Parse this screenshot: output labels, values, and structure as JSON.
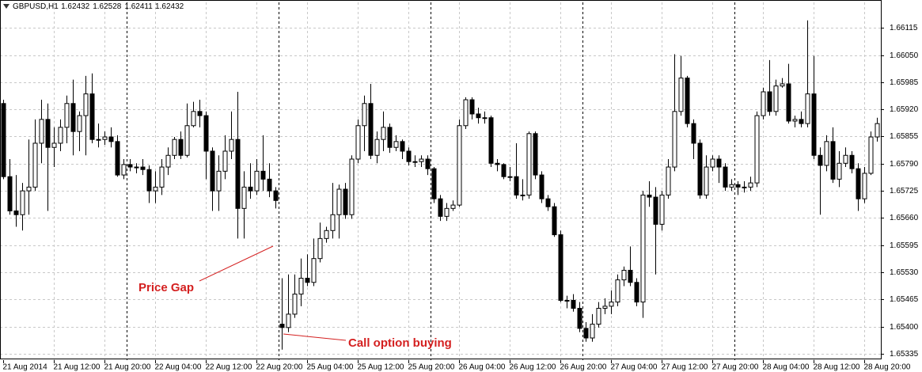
{
  "chart_data": {
    "type": "candlestick",
    "symbol": "GBPUSD,H1",
    "header_prices": [
      1.62432,
      1.62528,
      1.62411,
      1.62432
    ],
    "annotations": [
      "Price Gap",
      "Call option buying"
    ],
    "categories": [
      "21 Aug 2014",
      null,
      null,
      null,
      null,
      null,
      null,
      null,
      "21 Aug 12:00",
      null,
      null,
      null,
      null,
      null,
      null,
      null,
      "21 Aug 20:00",
      null,
      null,
      null,
      null,
      null,
      null,
      null,
      "22 Aug 04:00",
      null,
      null,
      null,
      null,
      null,
      null,
      null,
      "22 Aug 12:00",
      null,
      null,
      null,
      null,
      null,
      null,
      null,
      "22 Aug 20:00",
      null,
      null,
      null,
      null,
      null,
      null,
      null,
      "25 Aug 04:00",
      null,
      null,
      null,
      null,
      null,
      null,
      null,
      "25 Aug 12:00",
      null,
      null,
      null,
      null,
      null,
      null,
      null,
      "25 Aug 20:00",
      null,
      null,
      null,
      null,
      null,
      null,
      null,
      "26 Aug 04:00",
      null,
      null,
      null,
      null,
      null,
      null,
      null,
      "26 Aug 12:00",
      null,
      null,
      null,
      null,
      null,
      null,
      null,
      "26 Aug 20:00",
      null,
      null,
      null,
      null,
      null,
      null,
      null,
      "27 Aug 04:00",
      null,
      null,
      null,
      null,
      null,
      null,
      null,
      "27 Aug 12:00",
      null,
      null,
      null,
      null,
      null,
      null,
      null,
      "27 Aug 20:00",
      null,
      null,
      null,
      null,
      null,
      null,
      null,
      "28 Aug 04:00",
      null,
      null,
      null,
      null,
      null,
      null,
      null,
      "28 Aug 12:00",
      null,
      null,
      null,
      null,
      null,
      null,
      null,
      "28 Aug 20:00",
      null,
      null
    ],
    "open": [
      1.65934,
      1.65759,
      1.65677,
      1.65668,
      1.65725,
      1.65734,
      1.65839,
      1.65896,
      1.65829,
      1.65839,
      1.65877,
      1.65934,
      1.65867,
      1.65905,
      1.65957,
      1.65848,
      1.65848,
      1.65854,
      1.65843,
      1.65763,
      1.65788,
      1.65782,
      1.65782,
      1.65776,
      1.65725,
      1.65734,
      1.65782,
      1.6581,
      1.65848,
      1.6581,
      1.65881,
      1.65915,
      1.65905,
      1.6582,
      1.65725,
      1.65772,
      1.6582,
      1.65848,
      1.65683,
      1.65734,
      1.65725,
      1.65772,
      1.65753,
      1.65725,
      1.65406,
      1.65398,
      1.6543,
      1.65478,
      1.65516,
      1.65506,
      1.65563,
      1.65611,
      1.6563,
      1.65668,
      1.65729,
      1.65668,
      1.65801,
      1.65881,
      1.65934,
      1.6581,
      1.65848,
      1.65877,
      1.65829,
      1.65843,
      1.6582,
      1.65795,
      1.65795,
      1.65801,
      1.65778,
      1.65706,
      1.65664,
      1.65683,
      1.65691,
      1.65881,
      1.65943,
      1.65909,
      1.659,
      1.659,
      1.65791,
      1.65788,
      1.65759,
      1.65759,
      1.65715,
      1.65715,
      1.65862,
      1.65763,
      1.65706,
      1.65687,
      1.6562,
      1.65463,
      1.65463,
      1.65444,
      1.65396,
      1.65373,
      1.65406,
      1.65444,
      1.65449,
      1.65459,
      1.65512,
      1.65535,
      1.65506,
      1.65459,
      1.65715,
      1.6571,
      1.65645,
      1.65715,
      1.65782,
      1.65915,
      1.65995,
      1.65886,
      1.65839,
      1.65715,
      1.65782,
      1.65801,
      1.65782,
      1.65734,
      1.6574,
      1.65734,
      1.65734,
      1.65744,
      1.65905,
      1.65962,
      1.65915,
      1.65976,
      1.65981,
      1.65892,
      1.65896,
      1.65886,
      1.65957,
      1.6581,
      1.65786,
      1.65843,
      1.65753,
      1.65791,
      1.6581,
      1.65778,
      1.65706,
      1.65767,
      1.65854
    ],
    "high": [
      1.65943,
      1.65801,
      1.65763,
      1.65744,
      1.65848,
      1.65896,
      1.65943,
      1.65934,
      1.65877,
      1.65896,
      1.65953,
      1.65991,
      1.65915,
      1.66,
      1.66006,
      1.65886,
      1.65867,
      1.65877,
      1.65858,
      1.65801,
      1.65801,
      1.65791,
      1.65801,
      1.65786,
      1.65772,
      1.65801,
      1.65829,
      1.65854,
      1.65867,
      1.65934,
      1.65938,
      1.65943,
      1.65915,
      1.65829,
      1.6581,
      1.65858,
      1.65915,
      1.65962,
      1.65772,
      1.65791,
      1.65801,
      1.65858,
      1.65791,
      1.65734,
      1.65516,
      1.65525,
      1.65525,
      1.65563,
      1.65573,
      1.65611,
      1.65649,
      1.65639,
      1.65744,
      1.6574,
      1.65744,
      1.6581,
      1.65896,
      1.65953,
      1.65981,
      1.65867,
      1.65915,
      1.65886,
      1.65858,
      1.65848,
      1.65829,
      1.6581,
      1.6581,
      1.6581,
      1.65782,
      1.65715,
      1.65696,
      1.65702,
      1.65896,
      1.65949,
      1.65949,
      1.65924,
      1.65915,
      1.65905,
      1.65801,
      1.65791,
      1.65782,
      1.65839,
      1.65753,
      1.65867,
      1.65867,
      1.65772,
      1.65715,
      1.65696,
      1.6563,
      1.65474,
      1.65478,
      1.65459,
      1.65411,
      1.6543,
      1.65459,
      1.65468,
      1.65487,
      1.65525,
      1.65544,
      1.65592,
      1.65516,
      1.65725,
      1.65748,
      1.65734,
      1.65725,
      1.65801,
      1.66052,
      1.66048,
      1.66,
      1.65896,
      1.65848,
      1.6581,
      1.6581,
      1.6581,
      1.65791,
      1.65753,
      1.65748,
      1.65748,
      1.65759,
      1.65915,
      1.65972,
      1.66038,
      1.65991,
      1.65995,
      1.66029,
      1.65905,
      1.65915,
      1.66133,
      1.66048,
      1.65829,
      1.65858,
      1.65877,
      1.6582,
      1.65829,
      1.6582,
      1.65791,
      1.65782,
      1.65867,
      1.659
    ],
    "low": [
      1.65753,
      1.65668,
      1.65639,
      1.6563,
      1.65668,
      1.65725,
      1.65791,
      1.65677,
      1.65782,
      1.6582,
      1.65839,
      1.6581,
      1.6582,
      1.6581,
      1.65839,
      1.65829,
      1.65835,
      1.65829,
      1.65759,
      1.65753,
      1.65772,
      1.65767,
      1.65763,
      1.65696,
      1.65696,
      1.65715,
      1.65763,
      1.65801,
      1.65801,
      1.65805,
      1.65877,
      1.65877,
      1.65753,
      1.65677,
      1.65677,
      1.65753,
      1.65801,
      1.65611,
      1.65611,
      1.65706,
      1.65715,
      1.65725,
      1.6571,
      1.65683,
      1.65345,
      1.65387,
      1.65421,
      1.65449,
      1.65497,
      1.65497,
      1.65554,
      1.65601,
      1.65611,
      1.65611,
      1.65658,
      1.65658,
      1.65791,
      1.6582,
      1.65801,
      1.65791,
      1.6582,
      1.65816,
      1.6582,
      1.65801,
      1.65786,
      1.65782,
      1.65782,
      1.65763,
      1.65696,
      1.65653,
      1.65653,
      1.65677,
      1.65687,
      1.65873,
      1.65896,
      1.65886,
      1.65886,
      1.65782,
      1.65772,
      1.65753,
      1.65748,
      1.65706,
      1.65702,
      1.65706,
      1.65753,
      1.65696,
      1.65677,
      1.65615,
      1.65459,
      1.65444,
      1.65436,
      1.65387,
      1.65364,
      1.65364,
      1.65398,
      1.6543,
      1.6543,
      1.65449,
      1.65497,
      1.65497,
      1.65449,
      1.65421,
      1.65687,
      1.65525,
      1.6563,
      1.65706,
      1.65772,
      1.65905,
      1.65877,
      1.65801,
      1.65706,
      1.65706,
      1.65772,
      1.65744,
      1.65725,
      1.65725,
      1.65715,
      1.65721,
      1.65725,
      1.65734,
      1.65896,
      1.65905,
      1.65905,
      1.65972,
      1.65886,
      1.65877,
      1.65877,
      1.65877,
      1.65801,
      1.65668,
      1.65772,
      1.65744,
      1.65734,
      1.65782,
      1.65767,
      1.65677,
      1.65696,
      1.65763,
      1.65843
    ],
    "close": [
      1.65759,
      1.65677,
      1.65668,
      1.65725,
      1.65734,
      1.65839,
      1.65896,
      1.65829,
      1.65839,
      1.65877,
      1.65934,
      1.65867,
      1.65905,
      1.65957,
      1.65848,
      1.65848,
      1.65854,
      1.65843,
      1.65763,
      1.65788,
      1.65782,
      1.65782,
      1.65776,
      1.65725,
      1.65734,
      1.65782,
      1.6581,
      1.65848,
      1.6581,
      1.65881,
      1.65915,
      1.65905,
      1.6582,
      1.65725,
      1.65772,
      1.6582,
      1.65848,
      1.65683,
      1.65734,
      1.65725,
      1.65772,
      1.65753,
      1.65725,
      1.65702,
      1.65398,
      1.6543,
      1.65478,
      1.65516,
      1.65506,
      1.65563,
      1.65611,
      1.6563,
      1.65668,
      1.65729,
      1.65668,
      1.65801,
      1.65881,
      1.65934,
      1.6581,
      1.65848,
      1.65877,
      1.65829,
      1.65843,
      1.6582,
      1.65795,
      1.65795,
      1.65801,
      1.65778,
      1.65706,
      1.65664,
      1.65683,
      1.65691,
      1.65881,
      1.65943,
      1.65909,
      1.659,
      1.659,
      1.65791,
      1.65788,
      1.65759,
      1.65759,
      1.65715,
      1.65715,
      1.65862,
      1.65763,
      1.65706,
      1.65687,
      1.6562,
      1.65463,
      1.65463,
      1.65444,
      1.65396,
      1.65373,
      1.65406,
      1.65444,
      1.65449,
      1.65459,
      1.65512,
      1.65535,
      1.65506,
      1.65459,
      1.65715,
      1.6571,
      1.65645,
      1.65715,
      1.65782,
      1.65915,
      1.65995,
      1.65886,
      1.65839,
      1.65715,
      1.65782,
      1.65801,
      1.65782,
      1.65734,
      1.6574,
      1.65734,
      1.65734,
      1.65744,
      1.65905,
      1.65962,
      1.65915,
      1.65976,
      1.65981,
      1.65892,
      1.65896,
      1.65886,
      1.65957,
      1.6581,
      1.65786,
      1.65843,
      1.65753,
      1.65791,
      1.6581,
      1.65778,
      1.65706,
      1.65767,
      1.65854,
      1.65886
    ],
    "ylim": [
      1.6532,
      1.66176
    ],
    "yticks": [
      1.66115,
      {
        "value": 1.6605,
        "label": "1.66050"
      },
      1.65985,
      {
        "value": 1.6592,
        "label": "1.65920"
      },
      1.65855,
      {
        "value": 1.6579,
        "label": "1.65790"
      },
      1.65725,
      {
        "value": 1.6566,
        "label": "1.65660"
      },
      1.65595,
      {
        "value": 1.6553,
        "label": "1.65530"
      },
      1.65465,
      {
        "value": 1.654,
        "label": "1.65400"
      },
      1.65335
    ],
    "grid": true,
    "bull_color": "#ffffff",
    "bear_color": "#000000"
  }
}
